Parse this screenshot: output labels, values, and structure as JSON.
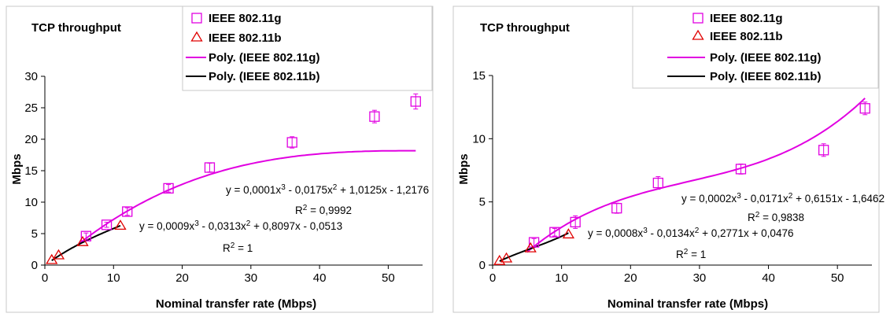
{
  "chart_data": [
    {
      "type": "scatter",
      "title": "TCP throughput",
      "xlabel": "Nominal transfer rate (Mbps)",
      "ylabel": "Mbps",
      "xlim": [
        0,
        55
      ],
      "ylim": [
        0,
        30
      ],
      "xticks": [
        "0",
        "10",
        "20",
        "30",
        "40",
        "50"
      ],
      "yticks": [
        "0",
        "5",
        "10",
        "15",
        "20",
        "25",
        "30"
      ],
      "grid": false,
      "legend_position": "top-right",
      "series": [
        {
          "name": "IEEE 802.11g",
          "marker": "square",
          "color": "#e100e1",
          "x": [
            6,
            9,
            12,
            18,
            24,
            36,
            48,
            54
          ],
          "y": [
            4.6,
            6.4,
            8.5,
            12.2,
            15.5,
            19.5,
            23.6,
            26.0
          ],
          "err": [
            0.5,
            0.4,
            0.6,
            0.6,
            0.7,
            0.9,
            1.0,
            1.2
          ]
        },
        {
          "name": "IEEE 802.11b",
          "marker": "triangle",
          "color": "#e00000",
          "x": [
            1,
            2,
            5.5,
            11
          ],
          "y": [
            0.75,
            1.5,
            3.6,
            6.2
          ]
        },
        {
          "name": "Poly. (IEEE 802.11g)",
          "type": "line",
          "color": "#e100e1",
          "coef": [
            -1.2176,
            1.0125,
            -0.0175,
            0.0001
          ],
          "x_range": [
            5,
            54
          ]
        },
        {
          "name": "Poly. (IEEE 802.11b)",
          "type": "line",
          "color": "#000000",
          "coef": [
            -0.0513,
            0.8097,
            -0.0313,
            0.0009
          ],
          "x_range": [
            1,
            11
          ]
        }
      ],
      "annotations": {
        "eq_g": {
          "pre": "y = 0,0001x",
          "a": "3",
          "mid": " - 0,0175x",
          "b": "2",
          "post": " + 1,0125x - 1,2176"
        },
        "r2_g": {
          "pre": "R",
          "sup": "2",
          "post": " = 0,9992"
        },
        "eq_b": {
          "pre": "y = 0,0009x",
          "a": "3",
          "mid": " - 0,0313x",
          "b": "2",
          "post": " + 0,8097x - 0,0513"
        },
        "r2_b": {
          "pre": "R",
          "sup": "2",
          "post": " = 1"
        }
      }
    },
    {
      "type": "scatter",
      "title": "TCP throughput",
      "xlabel": "Nominal transfer rate (Mbps)",
      "ylabel": "Mbps",
      "xlim": [
        0,
        55
      ],
      "ylim": [
        0,
        15
      ],
      "xticks": [
        "0",
        "10",
        "20",
        "30",
        "40",
        "50"
      ],
      "yticks": [
        "0",
        "5",
        "10",
        "15"
      ],
      "grid": false,
      "legend_position": "top-right",
      "series": [
        {
          "name": "IEEE 802.11g",
          "marker": "square",
          "color": "#e100e1",
          "x": [
            6,
            9,
            12,
            18,
            24,
            36,
            48,
            54
          ],
          "y": [
            1.8,
            2.6,
            3.4,
            4.5,
            6.5,
            7.6,
            9.1,
            12.4
          ],
          "err": [
            0.3,
            0.3,
            0.5,
            0.4,
            0.5,
            0.4,
            0.5,
            0.5
          ]
        },
        {
          "name": "IEEE 802.11b",
          "marker": "triangle",
          "color": "#e00000",
          "x": [
            1,
            2,
            5.5,
            11
          ],
          "y": [
            0.3,
            0.5,
            1.3,
            2.4
          ]
        },
        {
          "name": "Poly. (IEEE 802.11g)",
          "type": "line",
          "color": "#e100e1",
          "coef": [
            -1.6462,
            0.6151,
            -0.0171,
            0.0002
          ],
          "x_range": [
            5,
            54
          ]
        },
        {
          "name": "Poly. (IEEE 802.11b)",
          "type": "line",
          "color": "#000000",
          "coef": [
            0.0476,
            0.2771,
            -0.0134,
            0.0008
          ],
          "x_range": [
            1,
            11
          ]
        }
      ],
      "annotations": {
        "eq_g": {
          "pre": "y = 0,0002x",
          "a": "3",
          "mid": " - 0,0171x",
          "b": "2",
          "post": " + 0,6151x - 1,6462"
        },
        "r2_g": {
          "pre": "R",
          "sup": "2",
          "post": " = 0,9838"
        },
        "eq_b": {
          "pre": "y = 0,0008x",
          "a": "3",
          "mid": " - 0,0134x",
          "b": "2",
          "post": " + 0,2771x + 0,0476"
        },
        "r2_b": {
          "pre": "R",
          "sup": "2",
          "post": " = 1"
        }
      }
    }
  ]
}
